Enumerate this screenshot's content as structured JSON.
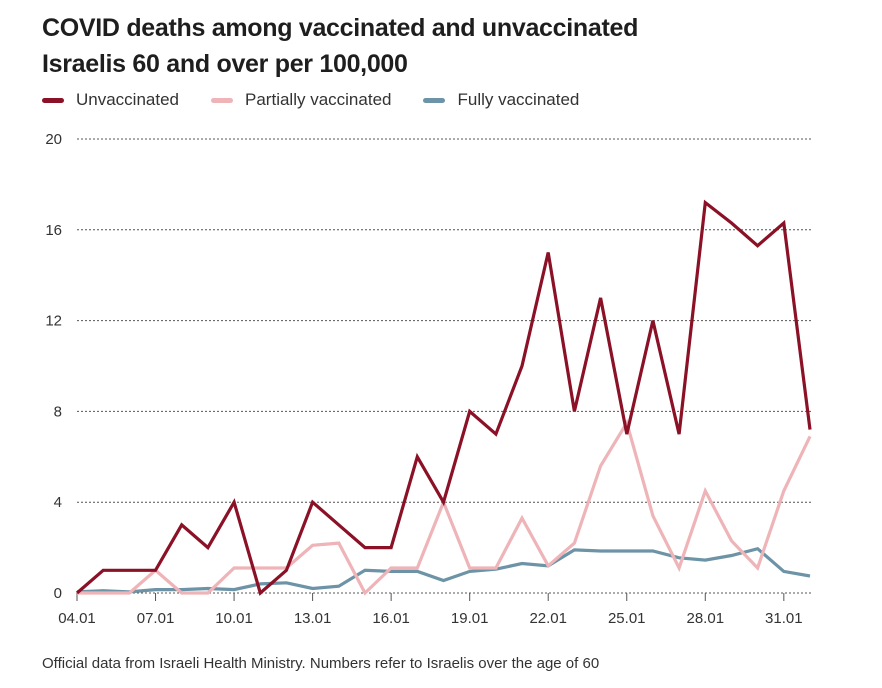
{
  "chart_data": {
    "type": "line",
    "title": "COVID deaths among vaccinated and unvaccinated Israelis 60 and over per 100,000",
    "xlabel": "",
    "ylabel": "",
    "ylim": [
      0,
      20
    ],
    "yticks": [
      0,
      4,
      8,
      12,
      16,
      20
    ],
    "grid": true,
    "legend_position": "top-left",
    "x": [
      "04.01",
      "05.01",
      "06.01",
      "07.01",
      "08.01",
      "09.01",
      "10.01",
      "11.01",
      "12.01",
      "13.01",
      "14.01",
      "15.01",
      "16.01",
      "17.01",
      "18.01",
      "19.01",
      "20.01",
      "21.01",
      "22.01",
      "23.01",
      "24.01",
      "25.01",
      "26.01",
      "27.01",
      "28.01",
      "29.01",
      "30.01",
      "31.01",
      "01.02"
    ],
    "xtick_labels": [
      "04.01",
      "07.01",
      "10.01",
      "13.01",
      "16.01",
      "19.01",
      "22.01",
      "25.01",
      "28.01",
      "31.01"
    ],
    "series": [
      {
        "name": "Unvaccinated",
        "color": "#8b1127",
        "values": [
          0,
          1,
          1,
          1,
          3,
          2,
          4,
          0,
          1,
          4,
          3,
          2,
          2,
          6,
          4,
          8,
          7,
          10,
          15,
          8,
          13,
          7,
          12,
          7,
          17.2,
          16.3,
          15.3,
          16.3,
          7.2
        ]
      },
      {
        "name": "Partially vaccinated",
        "color": "#eeb4b8",
        "values": [
          0,
          0,
          0,
          1,
          0,
          0,
          1.1,
          1.1,
          1.1,
          2.1,
          2.2,
          0,
          1.1,
          1.1,
          4,
          1.1,
          1.1,
          3.3,
          1.2,
          2.2,
          5.6,
          7.5,
          3.4,
          1.1,
          4.5,
          2.3,
          1.1,
          4.5,
          6.9
        ]
      },
      {
        "name": "Fully vaccinated",
        "color": "#6d93a6",
        "values": [
          0.05,
          0.1,
          0.05,
          0.15,
          0.15,
          0.2,
          0.15,
          0.4,
          0.45,
          0.2,
          0.3,
          1.0,
          0.95,
          0.95,
          0.55,
          0.95,
          1.05,
          1.3,
          1.2,
          1.9,
          1.85,
          1.85,
          1.85,
          1.55,
          1.45,
          1.65,
          1.95,
          0.95,
          0.75
        ]
      }
    ]
  },
  "footer": "Official data from Israeli Health Ministry. Numbers refer to Israelis over the age of 60"
}
